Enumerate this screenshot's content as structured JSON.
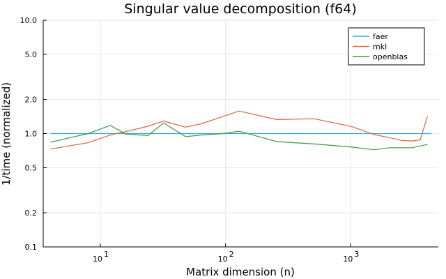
{
  "chart_data": {
    "type": "line",
    "title": "Singular value decomposition (f64)",
    "xlabel": "Matrix dimension (n)",
    "ylabel": "1/time (normalized)",
    "x_scale": "log10",
    "y_scale": "log10",
    "xlim": [
      3.5,
      5000
    ],
    "ylim": [
      0.1,
      10.0
    ],
    "x_ticks": [
      {
        "value": 10,
        "base": "10",
        "exp": "1"
      },
      {
        "value": 100,
        "base": "10",
        "exp": "2"
      },
      {
        "value": 1000,
        "base": "10",
        "exp": "3"
      }
    ],
    "y_ticks": [
      {
        "value": 0.1,
        "label": "0.1"
      },
      {
        "value": 0.2,
        "label": "0.2"
      },
      {
        "value": 0.5,
        "label": "0.5"
      },
      {
        "value": 1.0,
        "label": "1.0"
      },
      {
        "value": 2.0,
        "label": "2.0"
      },
      {
        "value": 5.0,
        "label": "5.0"
      },
      {
        "value": 10.0,
        "label": "10.0"
      }
    ],
    "grid": true,
    "legend_position": "top-right",
    "series": [
      {
        "name": "faer",
        "color": "#2ea9d6",
        "x": [
          4,
          4384
        ],
        "y": [
          1.0,
          1.0
        ]
      },
      {
        "name": "mkl",
        "color": "#e3603a",
        "x": [
          4,
          8,
          12,
          16,
          24,
          32,
          48,
          64,
          96,
          128,
          256,
          512,
          1024,
          1536,
          2048,
          2560,
          3072,
          3584,
          4096
        ],
        "y": [
          0.73,
          0.83,
          0.97,
          1.04,
          1.16,
          1.29,
          1.14,
          1.22,
          1.42,
          1.58,
          1.33,
          1.35,
          1.15,
          0.98,
          0.92,
          0.87,
          0.86,
          0.88,
          1.42
        ]
      },
      {
        "name": "openblas",
        "color": "#3a9a3a",
        "x": [
          4,
          8,
          12,
          16,
          24,
          32,
          48,
          64,
          96,
          128,
          256,
          512,
          1024,
          1536,
          2048,
          3072,
          4096
        ],
        "y": [
          0.84,
          1.0,
          1.18,
          0.99,
          0.96,
          1.24,
          0.94,
          0.97,
          1.0,
          1.05,
          0.85,
          0.81,
          0.76,
          0.72,
          0.75,
          0.75,
          0.8
        ]
      }
    ]
  }
}
